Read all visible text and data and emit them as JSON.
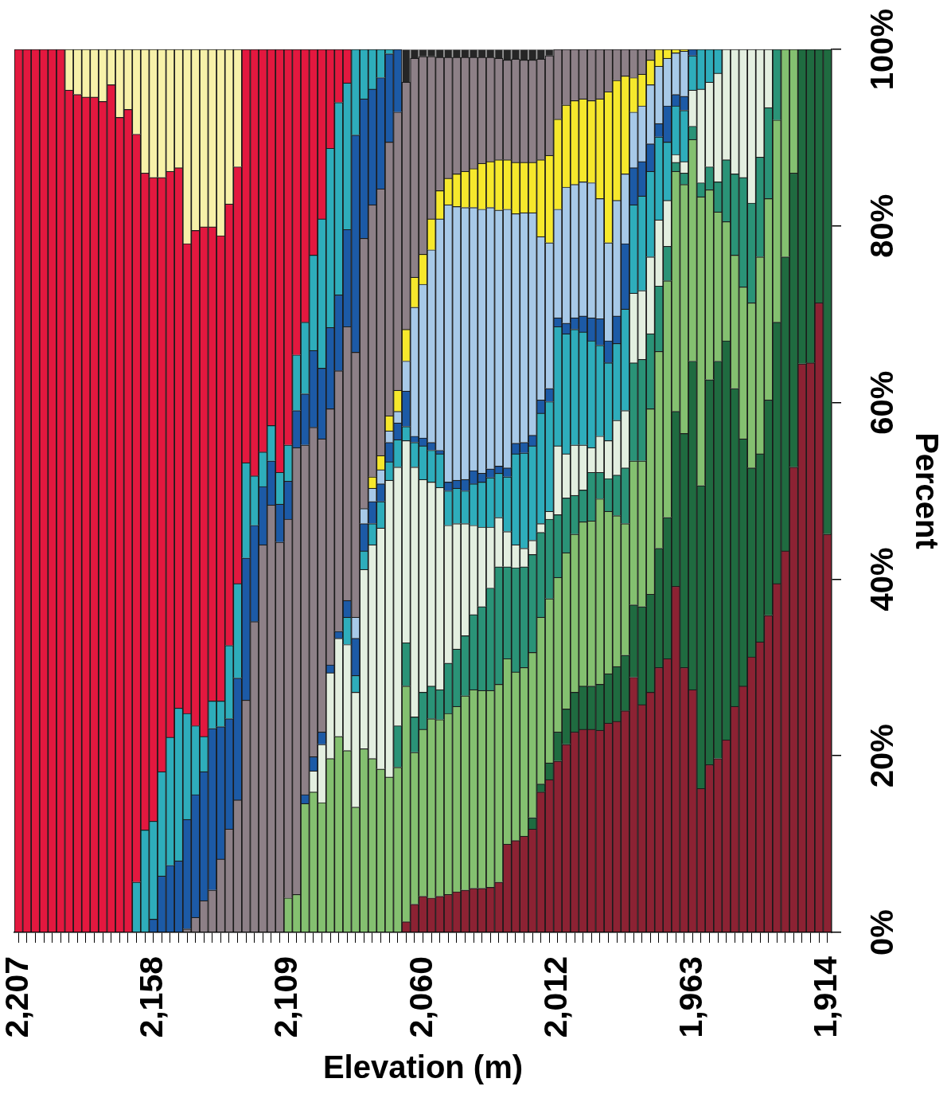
{
  "chart_data": {
    "type": "bar",
    "xlabel": "Elevation (m)",
    "ylabel": "Percent",
    "stacked": true,
    "grid": false,
    "categories": [
      "2,207",
      null,
      null,
      null,
      null,
      null,
      null,
      null,
      null,
      null,
      null,
      null,
      null,
      null,
      null,
      null,
      "2,158",
      null,
      null,
      null,
      null,
      null,
      null,
      null,
      null,
      null,
      null,
      null,
      null,
      null,
      null,
      null,
      "2,109",
      null,
      null,
      null,
      null,
      null,
      null,
      null,
      null,
      null,
      null,
      null,
      null,
      null,
      null,
      null,
      "2,060",
      null,
      null,
      null,
      null,
      null,
      null,
      null,
      null,
      null,
      null,
      null,
      null,
      null,
      null,
      null,
      "2,012",
      null,
      null,
      null,
      null,
      null,
      null,
      null,
      null,
      null,
      null,
      null,
      null,
      null,
      null,
      null,
      "1,963",
      null,
      null,
      null,
      null,
      null,
      null,
      null,
      null,
      null,
      null,
      null,
      null,
      null,
      null,
      null,
      "1,914"
    ],
    "ylim": [
      0,
      100
    ],
    "yticks": [
      {
        "value": 0,
        "label": "0%"
      },
      {
        "value": 20,
        "label": "20%"
      },
      {
        "value": 40,
        "label": "40%"
      },
      {
        "value": 60,
        "label": "60%"
      },
      {
        "value": 80,
        "label": "80%"
      },
      {
        "value": 100,
        "label": "100%"
      }
    ],
    "series": [
      {
        "color": "#8c2233",
        "values": [
          0,
          0,
          0,
          0,
          0,
          0,
          0,
          0,
          0,
          0,
          0,
          0,
          0,
          0,
          0,
          0,
          0,
          0,
          0,
          0,
          0,
          0,
          0,
          0,
          0,
          0,
          0,
          0,
          0,
          0,
          0,
          0,
          0,
          0,
          0,
          0,
          0,
          0,
          0,
          0,
          0,
          0,
          0,
          0,
          0,
          0,
          1.2,
          3.2,
          4.1,
          3.9,
          4.1,
          4.3,
          4.6,
          4.8,
          5,
          5,
          5.1,
          5.7,
          10,
          10.4,
          10.9,
          11.7,
          15.9,
          17.3,
          19.4,
          21.3,
          22.7,
          23,
          23,
          22.9,
          23.7,
          23.9,
          25.1,
          28.9,
          25.8,
          27.2,
          30,
          31,
          39.2,
          30,
          27.5,
          16.3,
          19,
          19.7,
          21.8,
          25.6,
          27.9,
          31.2,
          32.9,
          35.9,
          39.5,
          43.2,
          52.7,
          64.4,
          64.5,
          71.3,
          45.1
        ]
      },
      {
        "color": "#1f6b40",
        "values": [
          0,
          0,
          0,
          0,
          0,
          0,
          0,
          0,
          0,
          0,
          0,
          0,
          0,
          0,
          0,
          0,
          0,
          0,
          0,
          0,
          0,
          0,
          0,
          0,
          0,
          0,
          0,
          0,
          0,
          0,
          0,
          0,
          0,
          0,
          0,
          0,
          0,
          0,
          0,
          0,
          0,
          0,
          0,
          0,
          0,
          0,
          0,
          0,
          0,
          0,
          0,
          0,
          0,
          0,
          0,
          0,
          0,
          0,
          0,
          0,
          0,
          1.3,
          0.9,
          1.9,
          3.3,
          4,
          4.5,
          4.9,
          4.9,
          5.2,
          5.6,
          6.2,
          6.3,
          8.2,
          11.1,
          11.1,
          13.5,
          16,
          19.8,
          26.5,
          37.2,
          34.3,
          43.6,
          45,
          45.2,
          36,
          28,
          21.4,
          21.3,
          24.4,
          29.6,
          33.3,
          33.3,
          35.6,
          35.5,
          28.7,
          54.9
        ]
      },
      {
        "color": "#84c070",
        "values": [
          0,
          0,
          0,
          0,
          0,
          0,
          0,
          0,
          0,
          0,
          0,
          0,
          0,
          0,
          0,
          0,
          0,
          0,
          0,
          0,
          0,
          0,
          0,
          0,
          0,
          0,
          0,
          0,
          0,
          0,
          0,
          0,
          3.9,
          4.3,
          14.6,
          15.9,
          14.7,
          19.7,
          22.2,
          20.6,
          14.2,
          20.8,
          19.7,
          18.5,
          17.6,
          18.7,
          26.7,
          17.2,
          18.9,
          20.3,
          20,
          20.5,
          21,
          22,
          22.5,
          22.4,
          22.3,
          22.4,
          21,
          19.1,
          19.1,
          18.7,
          18.9,
          18.6,
          17.5,
          17.7,
          17.9,
          18.6,
          18.7,
          21,
          18.4,
          17.1,
          14.9,
          16.3,
          16.5,
          21,
          22.3,
          26.8,
          27.2,
          28.2,
          25.1,
          32.7,
          21.5,
          16.9,
          13.5,
          15.1,
          17.2,
          18.7,
          22.3,
          22.8,
          22.9,
          23.5,
          14,
          0,
          0,
          0,
          0
        ]
      },
      {
        "color": "#2a9377",
        "values": [
          0,
          0,
          0,
          0,
          0,
          0,
          0,
          0,
          0,
          0,
          0,
          0,
          0,
          0,
          0,
          0,
          0,
          0,
          0,
          0,
          0,
          0,
          0,
          0,
          0,
          0,
          0,
          0,
          0,
          0,
          0,
          0,
          0,
          0,
          0,
          0,
          0,
          0,
          0,
          0,
          0,
          0,
          0,
          0,
          0,
          4.7,
          4.9,
          4,
          4.2,
          3.7,
          3.4,
          5.7,
          6.5,
          6.8,
          8.5,
          9.5,
          11.6,
          13.3,
          10.4,
          11.8,
          11.4,
          11.1,
          9.6,
          9,
          7.1,
          6.2,
          4.4,
          3.6,
          5.5,
          3,
          3.7,
          4.6,
          6.3,
          11.1,
          11.5,
          8.5,
          7.4,
          3.9,
          1,
          1.3,
          1.5,
          1.6,
          2.6,
          3.4,
          7,
          9.2,
          12.4,
          11.3,
          11.3,
          10.3,
          8,
          0,
          0,
          0,
          0,
          0,
          0
        ]
      },
      {
        "color": "#e3efe0",
        "values": [
          0,
          0,
          0,
          0,
          0,
          0,
          0,
          0,
          0,
          0,
          0,
          0,
          0,
          0,
          0,
          0,
          0,
          0,
          0,
          0,
          0,
          0,
          0,
          0,
          0,
          0,
          0,
          0,
          0,
          0,
          0,
          0,
          0,
          0,
          0,
          2.4,
          6.6,
          9.7,
          11.1,
          12,
          13,
          20.3,
          24.2,
          27.3,
          33.6,
          29.3,
          22.9,
          28.3,
          24.1,
          23.1,
          22.9,
          15.6,
          14.2,
          12.7,
          10.1,
          9,
          6.9,
          5.6,
          4,
          2.6,
          2.1,
          1.6,
          1,
          0.9,
          7.8,
          5,
          5.7,
          5.1,
          2.8,
          4.1,
          4.3,
          6.2,
          6.5,
          7.9,
          7.8,
          8.7,
          7.5,
          5.2,
          0.9,
          1.3,
          4.1,
          10.6,
          9.6,
          12.3,
          12.5,
          14.1,
          14.5,
          17.4,
          12.2,
          6.6,
          0,
          0,
          0,
          0,
          0,
          0,
          0
        ]
      },
      {
        "color": "#2eadbb",
        "values": [
          0,
          0,
          0,
          0,
          0,
          0,
          0,
          0,
          0,
          0,
          0,
          0,
          0,
          0,
          0,
          0,
          0,
          0,
          0,
          0,
          0,
          0,
          0,
          0,
          0,
          0,
          0,
          0,
          0,
          0,
          0,
          0,
          0,
          0,
          0,
          0,
          0,
          0,
          0,
          3.1,
          1.9,
          2.1,
          2.4,
          3,
          2.1,
          3.1,
          1.6,
          2.8,
          3.8,
          3.6,
          3.8,
          3.9,
          4,
          3.7,
          4.7,
          5.1,
          5.6,
          5,
          6.2,
          10.3,
          10.8,
          10.7,
          12.5,
          12.4,
          13.5,
          13.6,
          13.1,
          12.8,
          12.1,
          10.3,
          8.8,
          8.7,
          11.5,
          10,
          10.7,
          9.7,
          9.4,
          6.6,
          5.5,
          5.8,
          3.9,
          4.5,
          3.7,
          2.7,
          0,
          0,
          0,
          0,
          0,
          0,
          0,
          0,
          0,
          0,
          0,
          0,
          0
        ]
      },
      {
        "color": "#1c5aa6",
        "values": [
          0,
          0,
          0,
          0,
          0,
          0,
          0,
          0,
          0,
          0,
          0,
          0,
          0,
          0,
          0,
          0,
          0,
          0,
          0,
          0,
          0,
          0,
          0,
          0,
          0,
          0,
          0,
          0,
          0,
          0,
          0,
          0,
          0,
          0,
          1,
          1.6,
          1.4,
          0.9,
          0.8,
          1.9,
          4.2,
          3.1,
          2.5,
          2,
          2.2,
          1.9,
          4,
          0.7,
          0.9,
          0.9,
          0.4,
          1,
          0.9,
          1.3,
          1.5,
          1,
          1,
          0.8,
          1,
          1.2,
          1.2,
          1.2,
          1.5,
          1.5,
          1,
          1.2,
          1.3,
          1.8,
          2.6,
          3,
          2.5,
          3.1,
          7.4,
          4.2,
          3.9,
          3.1,
          1.5,
          4.1,
          1.3,
          1.6,
          0.7,
          0,
          0,
          0,
          0,
          0,
          0,
          0,
          0,
          0,
          0,
          0,
          0,
          0,
          0,
          0,
          0
        ]
      },
      {
        "color": "#a7c9e8",
        "values": [
          0,
          0,
          0,
          0,
          0,
          0,
          0,
          0,
          0,
          0,
          0,
          0,
          0,
          0,
          0,
          0,
          0,
          0,
          0,
          0,
          0,
          0,
          0,
          0,
          0,
          0,
          0,
          0,
          0,
          0,
          0,
          0,
          0,
          0,
          0,
          0,
          0,
          0,
          0,
          0,
          2.4,
          1.7,
          1.5,
          1.6,
          1.3,
          1.3,
          3.4,
          14.6,
          17.4,
          21.8,
          26.2,
          31.4,
          31,
          30.8,
          29.8,
          29.9,
          29.6,
          29,
          29.3,
          26,
          26,
          25.2,
          18.5,
          16.5,
          12.3,
          15.4,
          15.1,
          15.2,
          15.3,
          13.6,
          11.1,
          13.1,
          7.9,
          6.3,
          6.3,
          6.7,
          6.5,
          5.4,
          4.7,
          5.1,
          0,
          0,
          0,
          0,
          0,
          0,
          0,
          0,
          0,
          0,
          0,
          0,
          0,
          0,
          0,
          0,
          0
        ]
      },
      {
        "color": "#f6e82c",
        "values": [
          0,
          0,
          0,
          0,
          0,
          0,
          0,
          0,
          0,
          0,
          0,
          0,
          0,
          0,
          0,
          0,
          0,
          0,
          0,
          0,
          0,
          0,
          0,
          0,
          0,
          0,
          0,
          0,
          0,
          0,
          0,
          0,
          0,
          0,
          0,
          0,
          0,
          0,
          0,
          0,
          0,
          0,
          1.3,
          1.6,
          1.7,
          2.4,
          3.6,
          3.4,
          3.4,
          3.5,
          3.2,
          3,
          3.7,
          4.1,
          4.4,
          5.2,
          5.2,
          5.7,
          5.6,
          5.8,
          5.7,
          5.7,
          8.7,
          9.9,
          10.2,
          9.3,
          9.5,
          9.4,
          9.3,
          11.3,
          17.1,
          13.6,
          11.1,
          3.9,
          3.6,
          2.8,
          1.9,
          1,
          0.4,
          0.2,
          0,
          0,
          0,
          0,
          0,
          0,
          0,
          0,
          0,
          0,
          0,
          0,
          0,
          0,
          0,
          0,
          0
        ]
      },
      {
        "color": "#8d8087",
        "values": [
          0,
          0,
          0,
          0,
          0,
          0,
          0,
          0,
          0,
          0,
          0,
          0,
          0,
          0,
          0,
          0,
          0,
          0,
          0,
          0,
          0.4,
          1.7,
          3.6,
          4.8,
          8.3,
          11.7,
          15,
          26.3,
          35.2,
          43.9,
          48.4,
          44.2,
          42.9,
          50.6,
          39.6,
          37.3,
          33.2,
          29,
          29.5,
          31,
          30,
          30.6,
          30.8,
          30.2,
          31,
          31.5,
          28,
          24.8,
          22.4,
          18.4,
          15.1,
          13.7,
          13.2,
          12.9,
          12.6,
          12,
          11.8,
          11.5,
          11.3,
          11.7,
          11.6,
          11.6,
          11.4,
          11.3,
          7.9,
          6.3,
          5.8,
          5.6,
          5.8,
          5.6,
          4.8,
          3.5,
          3,
          3.2,
          2.8,
          1.2,
          0,
          0,
          0,
          0,
          0,
          0,
          0,
          0,
          0,
          0,
          0,
          0,
          0,
          0,
          0,
          0,
          0,
          0,
          0,
          0,
          0
        ]
      },
      {
        "color": "#262626",
        "values": [
          0,
          0,
          0,
          0,
          0,
          0,
          0,
          0,
          0,
          0,
          0,
          0,
          0,
          0,
          0,
          0,
          0,
          0,
          0,
          0,
          0,
          0,
          0,
          0,
          0,
          0,
          0,
          0,
          0,
          0,
          0,
          0,
          0,
          0,
          0,
          0,
          0,
          0,
          0,
          0,
          0,
          0,
          0,
          0,
          0,
          0,
          3.7,
          1,
          0.8,
          0.8,
          0.9,
          0.9,
          0.9,
          0.9,
          0.9,
          0.9,
          0.9,
          1,
          1.2,
          1.1,
          1.2,
          1.2,
          1.1,
          0.7,
          0,
          0,
          0,
          0,
          0,
          0,
          0,
          0,
          0,
          0,
          0,
          0,
          0,
          0,
          0,
          0,
          0,
          0,
          0,
          0,
          0,
          0,
          0,
          0,
          0,
          0,
          0,
          0,
          0,
          0,
          0,
          0,
          0
        ]
      },
      {
        "color": "#1c5aa6",
        "values": [
          0,
          0,
          0,
          0,
          0,
          0,
          0,
          0,
          0,
          0,
          0,
          0,
          0,
          0,
          0,
          0,
          1.5,
          6.4,
          7.6,
          8.1,
          12.4,
          13.9,
          14.6,
          18.3,
          15,
          12.5,
          13.8,
          16.1,
          10.9,
          6.6,
          5,
          4.3,
          4.3,
          4.2,
          5.8,
          8.7,
          8,
          9.2,
          8.6,
          11,
          24.6,
          15.8,
          13.1,
          12.6,
          10,
          7.1,
          0,
          0,
          0,
          0,
          0,
          0,
          0,
          0,
          0,
          0,
          0,
          0,
          0,
          0,
          0,
          0,
          0,
          0,
          0,
          0,
          0,
          0,
          0,
          0,
          0,
          0,
          0,
          0,
          0,
          0,
          0,
          0,
          0,
          0,
          0,
          0,
          0,
          0,
          0,
          0,
          0,
          0,
          0,
          0,
          0,
          0,
          0,
          0,
          0,
          0,
          0
        ]
      },
      {
        "color": "#2eadbb",
        "values": [
          0,
          0,
          0,
          0,
          0,
          0,
          0,
          0,
          0,
          0,
          0,
          0,
          0,
          0,
          5.7,
          11.6,
          11.1,
          11.8,
          14.5,
          17.3,
          12,
          7.8,
          4,
          3.1,
          2.9,
          8.3,
          10.7,
          10.8,
          5.6,
          3.9,
          4,
          3.6,
          4.1,
          6.3,
          8.1,
          10.8,
          16.9,
          20.3,
          21.8,
          16.6,
          9.7,
          5.6,
          4.5,
          3.2,
          0.5,
          0,
          0,
          0,
          0,
          0,
          0,
          0,
          0,
          0,
          0,
          0,
          0,
          0,
          0,
          0,
          0,
          0,
          0,
          0,
          0,
          0,
          0,
          0,
          0,
          0,
          0,
          0,
          0,
          0,
          0,
          0,
          0,
          0,
          0,
          0,
          0,
          0,
          0,
          0,
          0,
          0,
          0,
          0,
          0,
          0,
          0,
          0,
          0,
          0,
          0,
          0,
          0
        ]
      },
      {
        "color": "#e3183f",
        "values": [
          100,
          100,
          100,
          100,
          100,
          100,
          95.4,
          94.9,
          94.6,
          94.6,
          94.1,
          96,
          92.3,
          93.2,
          84.7,
          74.4,
          72.9,
          67.3,
          64.1,
          61.2,
          53.2,
          56.1,
          57.7,
          53.7,
          52.7,
          50,
          47.2,
          46.8,
          48.3,
          45.6,
          42.6,
          47.9,
          44.8,
          34.6,
          30.9,
          23.3,
          19.2,
          11.2,
          6,
          3.8,
          0,
          0,
          0,
          0,
          0,
          0,
          0,
          0,
          0,
          0,
          0,
          0,
          0,
          0,
          0,
          0,
          0,
          0,
          0,
          0,
          0,
          0,
          0,
          0,
          0,
          0,
          0,
          0,
          0,
          0,
          0,
          0,
          0,
          0,
          0,
          0,
          0,
          0,
          0,
          0,
          0,
          0,
          0,
          0,
          0,
          0,
          0,
          0,
          0,
          0,
          0,
          0,
          0,
          0,
          0,
          0,
          0
        ]
      },
      {
        "color": "#f7f1a9",
        "values": [
          0,
          0,
          0,
          0,
          0,
          0,
          4.6,
          5.1,
          5.4,
          5.4,
          5.9,
          4,
          7.7,
          6.8,
          9.6,
          14,
          14.5,
          14.5,
          13.8,
          13.4,
          22,
          20.5,
          20.1,
          20.1,
          21.1,
          17.5,
          13.3,
          0,
          0,
          0,
          0,
          0,
          0,
          0,
          0,
          0,
          0,
          0,
          0,
          0,
          0,
          0,
          0,
          0,
          0,
          0,
          0,
          0,
          0,
          0,
          0,
          0,
          0,
          0,
          0,
          0,
          0,
          0,
          0,
          0,
          0,
          0,
          0,
          0,
          0,
          0,
          0,
          0,
          0,
          0,
          0,
          0,
          0,
          0,
          0,
          0,
          0,
          0,
          0,
          0,
          0,
          0,
          0,
          0,
          0,
          0,
          0,
          0,
          0,
          0,
          0,
          0,
          0,
          0,
          0,
          0,
          0
        ]
      }
    ]
  }
}
